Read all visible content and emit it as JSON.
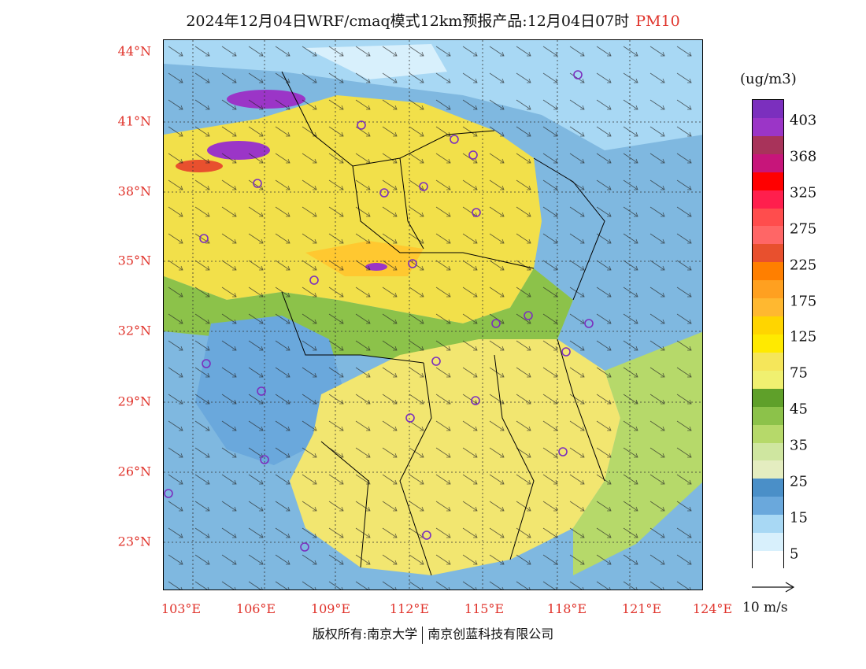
{
  "title": {
    "main": "2024年12月04日WRF/cmaq模式12km预报产品:12月04日07时",
    "pollutant": "PM10"
  },
  "axes": {
    "lat_labels": [
      "44°N",
      "41°N",
      "38°N",
      "35°N",
      "32°N",
      "29°N",
      "26°N",
      "23°N"
    ],
    "lon_labels": [
      "103°E",
      "106°E",
      "109°E",
      "112°E",
      "115°E",
      "118°E",
      "121°E",
      "124°E"
    ]
  },
  "legend": {
    "unit": "(ug/m3)",
    "labels": [
      "403",
      "368",
      "325",
      "275",
      "225",
      "175",
      "125",
      "75",
      "45",
      "35",
      "25",
      "15",
      "5"
    ],
    "colors": [
      "#7b2fbe",
      "#9b35c7",
      "#a8335a",
      "#c7157a",
      "#ff0000",
      "#ff1f4d",
      "#ff4d4d",
      "#ff6666",
      "#e8502e",
      "#ff7f00",
      "#ffa020",
      "#ffb830",
      "#ffd500",
      "#ffea00",
      "#f5e65a",
      "#f0f070",
      "#5fa02a",
      "#8cc24a",
      "#b6d96a",
      "#cfe6a0",
      "#e4edc0",
      "#4a8fc8",
      "#6aa8dc",
      "#a8d8f4",
      "#d8f0fc",
      "#ffffff"
    ]
  },
  "wind_scale": {
    "label": "10 m/s"
  },
  "copyright": {
    "left": "版权所有:南京大学",
    "right": "南京创蓝科技有限公司"
  },
  "map_colors": {
    "sea": "#7fb8e0",
    "north_yellow": "#f2e04a",
    "south_yellow": "#f2e670",
    "green": "#8cc24a",
    "blue_land": "#6aa8dc",
    "hotspot": "#9b35c7",
    "boundary": "#000000",
    "city_marker": "#7b2fbe"
  }
}
